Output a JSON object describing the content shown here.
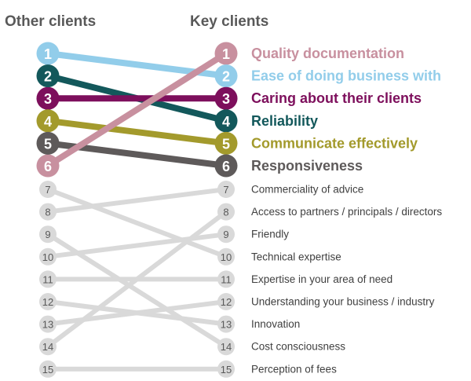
{
  "chart_data": {
    "type": "slope",
    "left_header": "Other clients",
    "right_header": "Key clients",
    "items": [
      {
        "label": "Quality documentation",
        "other_rank": 6,
        "key_rank": 1,
        "color": "#c8909f",
        "highlight": true
      },
      {
        "label": "Ease of doing business with",
        "other_rank": 1,
        "key_rank": 2,
        "color": "#92cdea",
        "highlight": true
      },
      {
        "label": "Caring about their clients",
        "other_rank": 3,
        "key_rank": 3,
        "color": "#7d0f5c",
        "highlight": true
      },
      {
        "label": "Reliability",
        "other_rank": 2,
        "key_rank": 4,
        "color": "#13585b",
        "highlight": true
      },
      {
        "label": "Communicate effectively",
        "other_rank": 4,
        "key_rank": 5,
        "color": "#a39a2c",
        "highlight": true
      },
      {
        "label": "Responsiveness",
        "other_rank": 5,
        "key_rank": 6,
        "color": "#5e5a5a",
        "highlight": true
      },
      {
        "label": "Commerciality of advice",
        "other_rank": 8,
        "key_rank": 7,
        "color": "#d9d9d9",
        "highlight": false
      },
      {
        "label": "Access to partners / principals / directors",
        "other_rank": 14,
        "key_rank": 8,
        "color": "#d9d9d9",
        "highlight": false
      },
      {
        "label": "Friendly",
        "other_rank": 10,
        "key_rank": 9,
        "color": "#d9d9d9",
        "highlight": false
      },
      {
        "label": "Technical expertise",
        "other_rank": 7,
        "key_rank": 10,
        "color": "#d9d9d9",
        "highlight": false
      },
      {
        "label": "Expertise in your area of need",
        "other_rank": 11,
        "key_rank": 11,
        "color": "#d9d9d9",
        "highlight": false
      },
      {
        "label": "Understanding your business / industry",
        "other_rank": 13,
        "key_rank": 12,
        "color": "#d9d9d9",
        "highlight": false
      },
      {
        "label": "Innovation",
        "other_rank": 12,
        "key_rank": 13,
        "color": "#d9d9d9",
        "highlight": false
      },
      {
        "label": "Cost consciousness",
        "other_rank": 9,
        "key_rank": 14,
        "color": "#d9d9d9",
        "highlight": false
      },
      {
        "label": "Perception of fees",
        "other_rank": 15,
        "key_rank": 15,
        "color": "#d9d9d9",
        "highlight": false
      }
    ]
  }
}
